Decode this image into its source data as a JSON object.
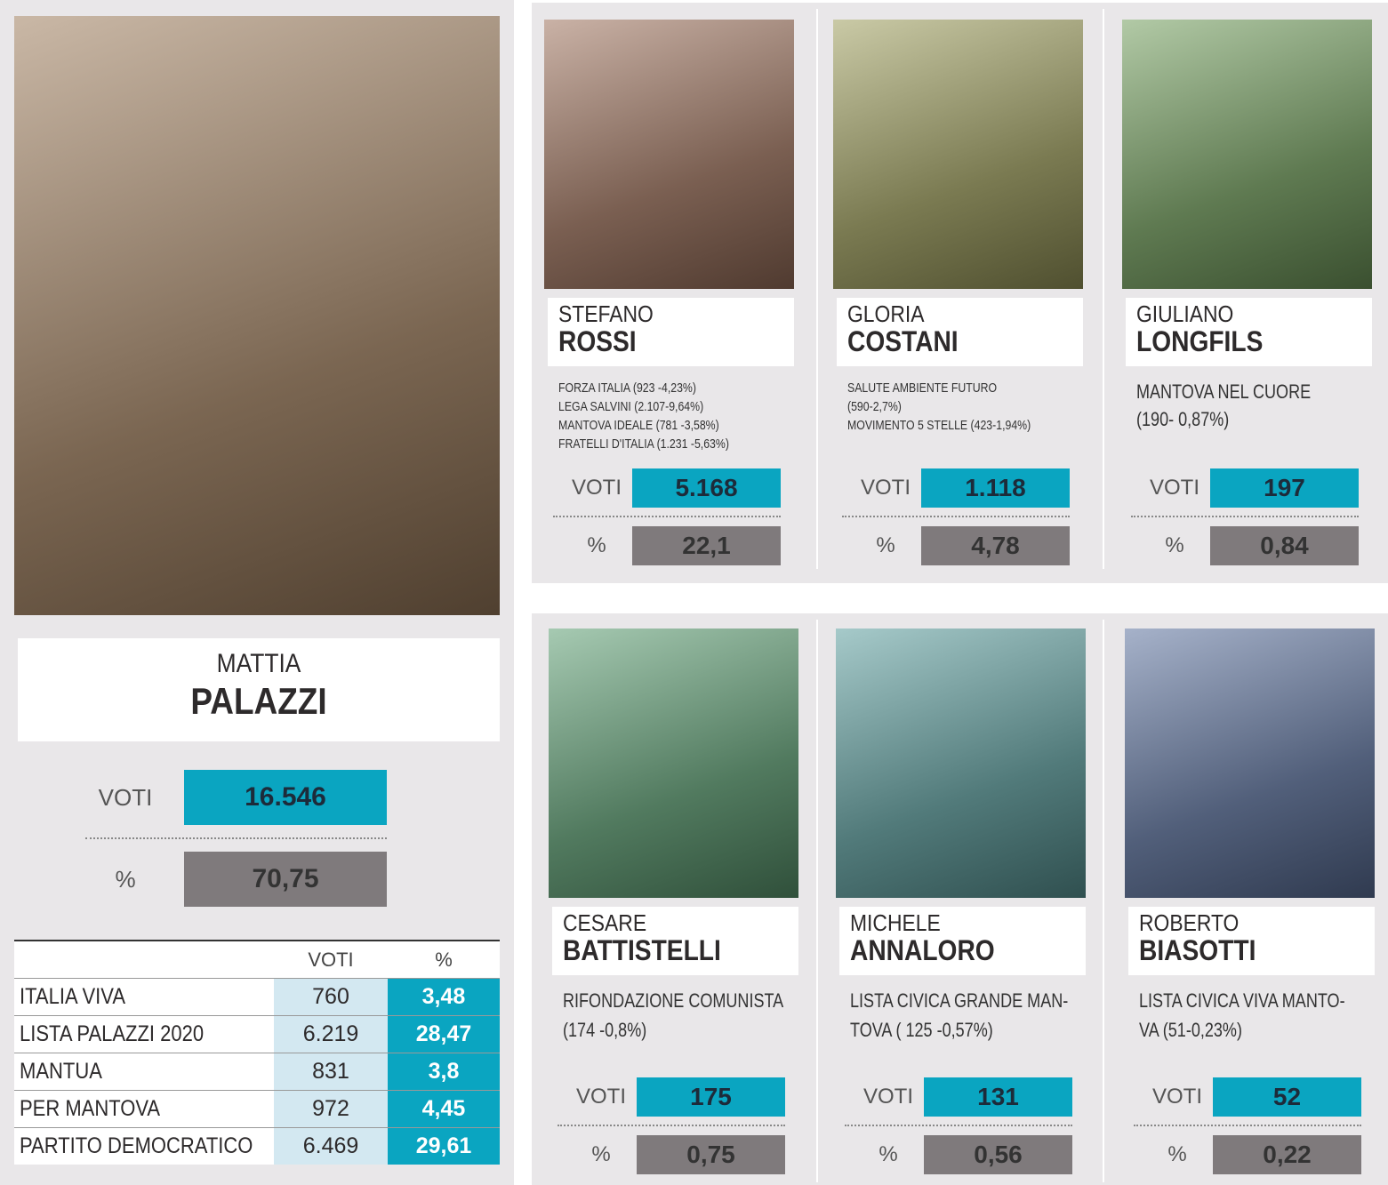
{
  "winner": {
    "first_name": "MATTIA",
    "last_name": "PALAZZI",
    "votes_label": "VOTI",
    "votes": "16.546",
    "pct_label": "%",
    "pct": "70,75",
    "table": {
      "header": [
        "VOTI",
        "%"
      ],
      "rows": [
        [
          "ITALIA VIVA",
          "760",
          "3,48"
        ],
        [
          "LISTA PALAZZI 2020",
          "6.219",
          "28,47"
        ],
        [
          "MANTUA",
          "831",
          "3,8"
        ],
        [
          "PER MANTOVA",
          "972",
          "4,45"
        ],
        [
          "PARTITO DEMOCRATICO",
          "6.469",
          "29,61"
        ]
      ]
    }
  },
  "candidates": [
    {
      "first_name": "STEFANO",
      "last_name": "ROSSI",
      "lists": [
        "FORZA ITALIA (923 -4,23%)",
        "LEGA SALVINI (2.107-9,64%)",
        "MANTOVA IDEALE (781 -3,58%)",
        "FRATELLI D'ITALIA (1.231 -5,63%)"
      ],
      "votes_label": "VOTI",
      "votes": "5.168",
      "pct_label": "%",
      "pct": "22,1"
    },
    {
      "first_name": "GLORIA",
      "last_name": "COSTANI",
      "lists": [
        "SALUTE AMBIENTE FUTURO",
        "(590-2,7%)",
        "MOVIMENTO 5 STELLE (423-1,94%)"
      ],
      "votes_label": "VOTI",
      "votes": "1.118",
      "pct_label": "%",
      "pct": "4,78"
    },
    {
      "first_name": "GIULIANO",
      "last_name": "LONGFILS",
      "lists": [
        "MANTOVA NEL CUORE",
        "(190- 0,87%)"
      ],
      "votes_label": "VOTI",
      "votes": "197",
      "pct_label": "%",
      "pct": "0,84"
    },
    {
      "first_name": "CESARE",
      "last_name": "BATTISTELLI",
      "lists": [
        "RIFONDAZIONE COMUNISTA",
        "(174 -0,8%)"
      ],
      "votes_label": "VOTI",
      "votes": "175",
      "pct_label": "%",
      "pct": "0,75"
    },
    {
      "first_name": "MICHELE",
      "last_name": "ANNALORO",
      "lists": [
        "LISTA CIVICA GRANDE MAN-",
        "TOVA ( 125 -0,57%)"
      ],
      "votes_label": "VOTI",
      "votes": "131",
      "pct_label": "%",
      "pct": "0,56"
    },
    {
      "first_name": "ROBERTO",
      "last_name": "BIASOTTI",
      "lists": [
        "LISTA CIVICA VIVA MANTO-",
        "VA (51-0,23%)"
      ],
      "votes_label": "VOTI",
      "votes": "52",
      "pct_label": "%",
      "pct": "0,22"
    }
  ]
}
